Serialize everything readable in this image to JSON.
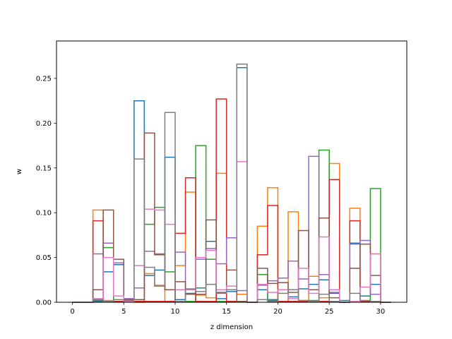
{
  "chart_data": {
    "type": "step-histogram",
    "xlabel": "z dimension",
    "ylabel": "w",
    "xlim": [
      -1.55,
      32.55
    ],
    "ylim": [
      0,
      0.2918
    ],
    "xticks": [
      0,
      5,
      10,
      15,
      20,
      25,
      30
    ],
    "yticks": [
      0.0,
      0.05,
      0.1,
      0.15,
      0.2,
      0.25
    ],
    "yticklabels": [
      "0.00",
      "0.05",
      "0.10",
      "0.15",
      "0.20",
      "0.25"
    ],
    "bin_edges": [
      0,
      1,
      2,
      3,
      4,
      5,
      6,
      7,
      8,
      9,
      10,
      11,
      12,
      13,
      14,
      15,
      16,
      17,
      18,
      19,
      20,
      21,
      22,
      23,
      24,
      25,
      26,
      27,
      28,
      29,
      30,
      31
    ],
    "series": [
      {
        "color": "#1f77b4",
        "values": [
          0,
          0,
          0.001,
          0.034,
          0.042,
          0.002,
          0.225,
          0.03,
          0.036,
          0.162,
          0.003,
          0.01,
          0.016,
          0.068,
          0.004,
          0.012,
          0.262,
          0,
          0.014,
          0.003,
          0.001,
          0.006,
          0.015,
          0.02,
          0.025,
          0.01,
          0.002,
          0.066,
          0.007,
          0.02,
          0
        ]
      },
      {
        "color": "#ff7f0e",
        "values": [
          0,
          0,
          0.103,
          0.002,
          0.001,
          0.001,
          0,
          0.032,
          0.019,
          0.001,
          0.041,
          0.123,
          0.008,
          0.005,
          0.144,
          0.014,
          0.009,
          0,
          0.085,
          0.128,
          0.001,
          0.101,
          0.002,
          0.029,
          0.005,
          0.155,
          0,
          0.105,
          0.001,
          0.054,
          0
        ]
      },
      {
        "color": "#2ca02c",
        "values": [
          0,
          0,
          0.002,
          0.061,
          0.001,
          0.001,
          0.001,
          0.087,
          0.106,
          0.034,
          0.001,
          0.001,
          0.175,
          0.048,
          0.001,
          0.001,
          0.001,
          0,
          0.031,
          0.002,
          0.001,
          0.001,
          0.001,
          0.002,
          0.17,
          0.001,
          0,
          0.001,
          0.001,
          0.127,
          0
        ]
      },
      {
        "color": "#d62728",
        "values": [
          0,
          0,
          0.091,
          0.001,
          0.001,
          0.001,
          0.001,
          0.001,
          0.001,
          0.001,
          0.077,
          0.139,
          0.001,
          0.001,
          0.227,
          0.001,
          0.001,
          0,
          0.053,
          0.108,
          0.001,
          0.001,
          0.001,
          0.001,
          0.001,
          0.137,
          0,
          0.091,
          0.001,
          0.001,
          0
        ]
      },
      {
        "color": "#9467bd",
        "values": [
          0,
          0,
          0.054,
          0.066,
          0.044,
          0.004,
          0.016,
          0.057,
          0.054,
          0.014,
          0.056,
          0.014,
          0.048,
          0.06,
          0.043,
          0.072,
          0.013,
          0,
          0.019,
          0.024,
          0.027,
          0.046,
          0.026,
          0.163,
          0.031,
          0.011,
          0,
          0.065,
          0.069,
          0.009,
          0
        ]
      },
      {
        "color": "#8c564b",
        "values": [
          0,
          0,
          0.014,
          0.103,
          0.048,
          0.003,
          0.003,
          0.189,
          0.053,
          0.014,
          0.023,
          0.009,
          0.009,
          0.092,
          0.011,
          0.036,
          0.001,
          0,
          0.038,
          0.021,
          0.022,
          0.011,
          0.08,
          0.014,
          0.094,
          0.005,
          0,
          0.038,
          0.065,
          0.03,
          0
        ]
      },
      {
        "color": "#e377c2",
        "values": [
          0,
          0,
          0.004,
          0.05,
          0.007,
          0.001,
          0.041,
          0.104,
          0.103,
          0.087,
          0.014,
          0.014,
          0.05,
          0.058,
          0.014,
          0.018,
          0.157,
          0,
          0.02,
          0.011,
          0.014,
          0.004,
          0.038,
          0.01,
          0.073,
          0.014,
          0,
          0.001,
          0.017,
          0.054,
          0
        ]
      },
      {
        "color": "#7f7f7f",
        "values": [
          0,
          0,
          0.003,
          0.001,
          0.003,
          0.002,
          0.16,
          0.039,
          0.018,
          0.212,
          0.001,
          0.015,
          0.012,
          0.02,
          0.01,
          0.014,
          0.266,
          0,
          0.003,
          0.001,
          0.01,
          0.014,
          0.002,
          0.001,
          0.009,
          0.001,
          0,
          0.01,
          0.002,
          0.001,
          0
        ]
      }
    ]
  }
}
